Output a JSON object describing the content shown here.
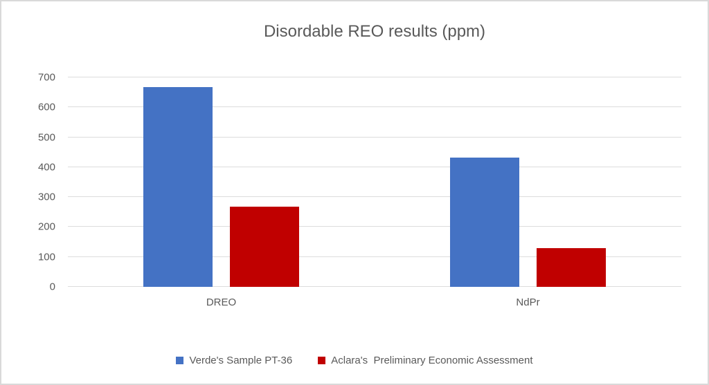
{
  "window": {
    "background": "#ffffff",
    "border_color": "#d9d9d9"
  },
  "chart_data": {
    "type": "bar",
    "title": "Disordable REO results (ppm)",
    "categories": [
      "DREO",
      "NdPr"
    ],
    "series": [
      {
        "name": "Verde's Sample PT-36",
        "color": "#4472C4",
        "values": [
          668,
          433
        ]
      },
      {
        "name": "Aclara's  Preliminary Economic Assessment",
        "color": "#C00000",
        "values": [
          267,
          129
        ]
      }
    ],
    "ylim": [
      0,
      700
    ],
    "yticks": [
      0,
      100,
      200,
      300,
      400,
      500,
      600,
      700
    ],
    "xlabel": "",
    "ylabel": "",
    "grid": "horizontal",
    "legend_position": "bottom",
    "text_color": "#595959",
    "grid_color": "#dcdcdc"
  }
}
